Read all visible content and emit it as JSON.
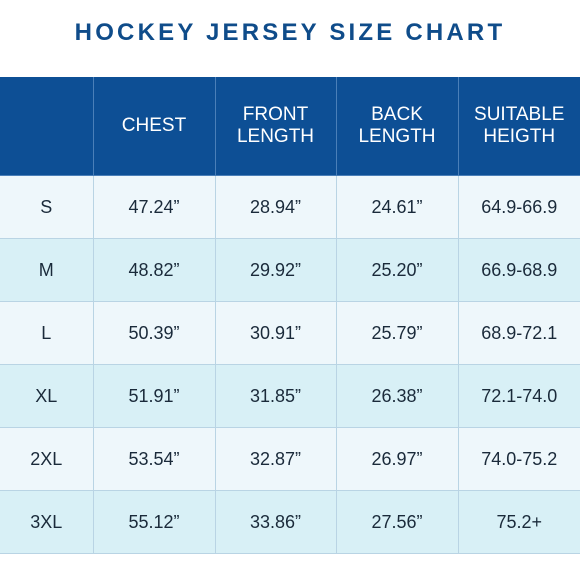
{
  "title": "HOCKEY JERSEY SIZE CHART",
  "table": {
    "headers": [
      {
        "lines": [
          ""
        ]
      },
      {
        "lines": [
          "CHEST"
        ]
      },
      {
        "lines": [
          "FRONT",
          "LENGTH"
        ]
      },
      {
        "lines": [
          "BACK",
          "LENGTH"
        ]
      },
      {
        "lines": [
          "SUITABLE",
          "HEIGTH"
        ]
      }
    ],
    "rows": [
      {
        "size": "S",
        "chest": "47.24”",
        "front_length": "28.94”",
        "back_length": "24.61”",
        "suitable_height": "64.9-66.9"
      },
      {
        "size": "M",
        "chest": "48.82”",
        "front_length": "29.92”",
        "back_length": "25.20”",
        "suitable_height": "66.9-68.9"
      },
      {
        "size": "L",
        "chest": "50.39”",
        "front_length": "30.91”",
        "back_length": "25.79”",
        "suitable_height": "68.9-72.1"
      },
      {
        "size": "XL",
        "chest": "51.91”",
        "front_length": "31.85”",
        "back_length": "26.38”",
        "suitable_height": "72.1-74.0"
      },
      {
        "size": "2XL",
        "chest": "53.54”",
        "front_length": "32.87”",
        "back_length": "26.97”",
        "suitable_height": "74.0-75.2"
      },
      {
        "size": "3XL",
        "chest": "55.12”",
        "front_length": "33.86”",
        "back_length": "27.56”",
        "suitable_height": "75.2+"
      }
    ]
  },
  "colors": {
    "title": "#0f4c8a",
    "header_background": "#0d4f95",
    "header_text": "#ffffff",
    "row_light": "#eef7fb",
    "row_tint": "#d8f0f6"
  }
}
